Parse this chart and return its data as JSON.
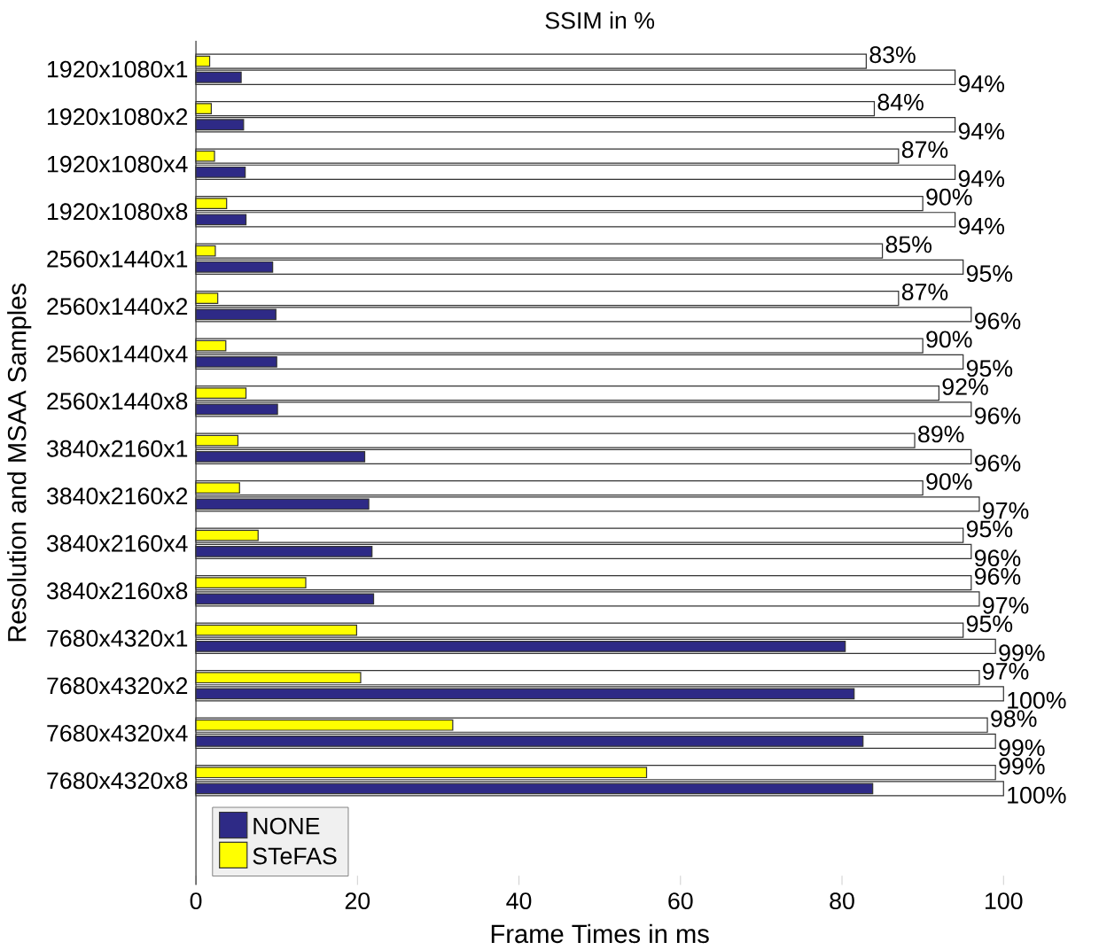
{
  "chart_data": {
    "type": "bar",
    "orientation": "horizontal",
    "title": "SSIM in %",
    "xlabel": "Frame Times in ms",
    "ylabel": "Resolution and MSAA Samples",
    "categories": [
      "1920x1080x1",
      "1920x1080x2",
      "1920x1080x4",
      "1920x1080x8",
      "2560x1440x1",
      "2560x1440x2",
      "2560x1440x4",
      "2560x1440x8",
      "3840x2160x1",
      "3840x2160x2",
      "3840x2160x4",
      "3840x2160x8",
      "7680x4320x1",
      "7680x4320x2",
      "7680x4320x4",
      "7680x4320x8"
    ],
    "series": [
      {
        "color": "#ffffff",
        "values": [
          83,
          84,
          87,
          90,
          85,
          87,
          90,
          92,
          89,
          90,
          95,
          96,
          95,
          97,
          98,
          99
        ],
        "value_labels": [
          "83%",
          "84%",
          "87%",
          "90%",
          "85%",
          "87%",
          "90%",
          "92%",
          "89%",
          "90%",
          "95%",
          "96%",
          "95%",
          "97%",
          "98%",
          "99%"
        ]
      },
      {
        "name": "STeFAS",
        "color": "#ffff00",
        "values": [
          1.7,
          1.9,
          2.3,
          3.8,
          2.4,
          2.7,
          3.7,
          6.2,
          5.2,
          5.4,
          7.7,
          13.6,
          19.9,
          20.4,
          31.8,
          55.8
        ]
      },
      {
        "color": "#ffffff",
        "values": [
          94,
          94,
          94,
          94,
          95,
          96,
          95,
          96,
          96,
          97,
          96,
          97,
          99,
          100,
          99,
          100
        ],
        "value_labels": [
          "94%",
          "94%",
          "94%",
          "94%",
          "95%",
          "96%",
          "95%",
          "96%",
          "96%",
          "97%",
          "96%",
          "97%",
          "99%",
          "100%",
          "99%",
          "100%"
        ]
      },
      {
        "name": "NONE",
        "color": "#2e2a86",
        "values": [
          5.6,
          5.9,
          6.1,
          6.2,
          9.5,
          9.9,
          10.0,
          10.1,
          20.9,
          21.4,
          21.8,
          22.0,
          80.4,
          81.5,
          82.6,
          83.8
        ]
      }
    ],
    "xlim": [
      0,
      100
    ],
    "xticks": [
      0,
      20,
      40,
      60,
      80,
      100
    ],
    "legend": "bottom left"
  }
}
